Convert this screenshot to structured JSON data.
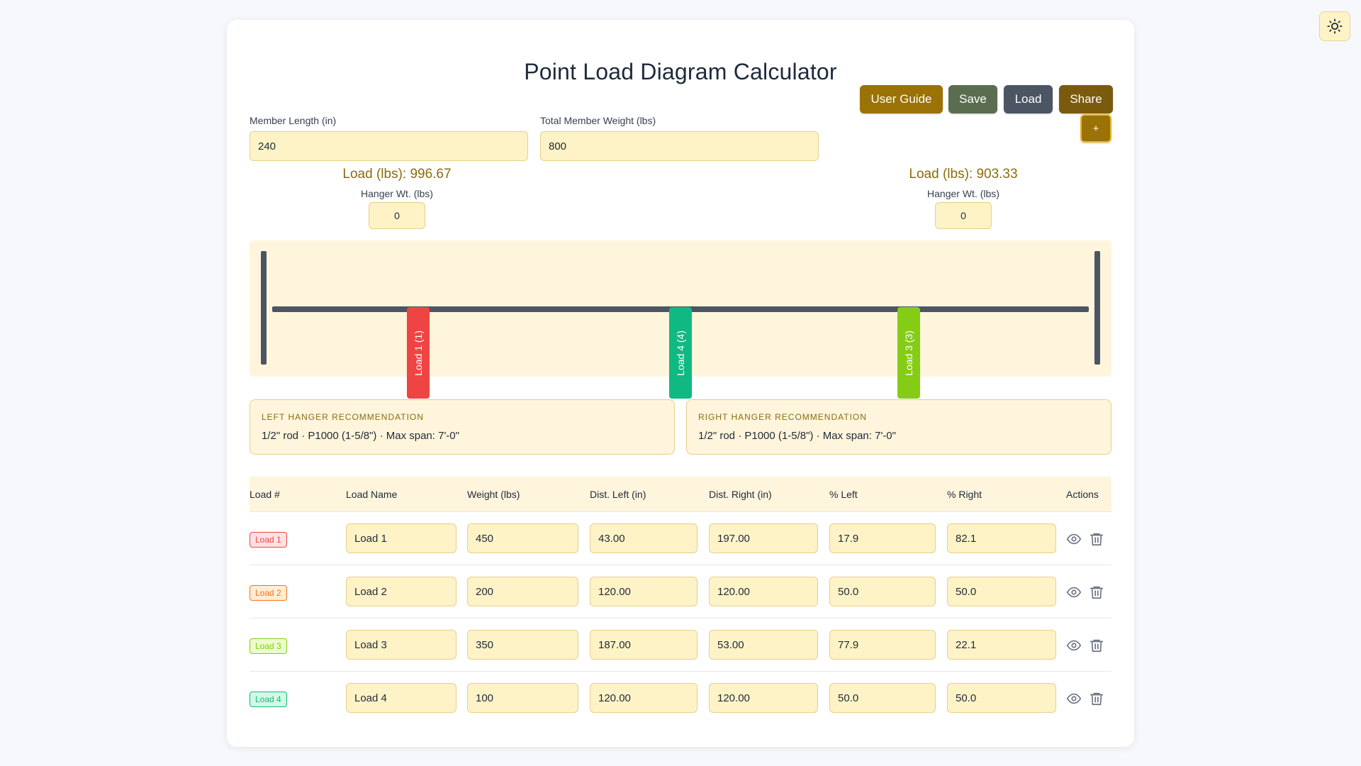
{
  "app": {
    "title": "Point Load Diagram Calculator"
  },
  "fields": {
    "member_length_label": "Member Length (in)",
    "member_length_value": "240",
    "total_weight_label": "Total Member Weight (lbs)",
    "total_weight_value": "800"
  },
  "toolbar": {
    "user_guide": "User Guide",
    "save": "Save",
    "load": "Load",
    "share": "Share",
    "add": "+"
  },
  "supports": {
    "left": {
      "load_text": "Load (lbs): 996.67",
      "hanger_label": "Hanger Wt. (lbs)",
      "hanger_value": "0"
    },
    "right": {
      "load_text": "Load (lbs): 903.33",
      "hanger_label": "Hanger Wt. (lbs)",
      "hanger_value": "0"
    }
  },
  "diagram": {
    "member_length": 240,
    "markers": [
      {
        "label": "Load 1 (1)",
        "position_in": 43,
        "color": "#ef4444"
      },
      {
        "label": "Load 4 (4)",
        "position_in": 120,
        "color": "#10b981"
      },
      {
        "label": "Load 3 (3)",
        "position_in": 187,
        "color": "#84cc16"
      }
    ]
  },
  "recommendations": {
    "left": {
      "title": "LEFT HANGER RECOMMENDATION",
      "text": "1/2\" rod · P1000 (1-5/8\") · Max span: 7'-0\""
    },
    "right": {
      "title": "RIGHT HANGER RECOMMENDATION",
      "text": "1/2\" rod · P1000 (1-5/8\") · Max span: 7'-0\""
    }
  },
  "table": {
    "headers": [
      "Load #",
      "Load Name",
      "Weight (lbs)",
      "Dist. Left (in)",
      "Dist. Right (in)",
      "% Left",
      "% Right",
      "Actions"
    ],
    "rows": [
      {
        "badge": "Load 1",
        "badge_color": "#ef4444",
        "badge_bg": "#fee2e2",
        "name": "Load 1",
        "weight": "450",
        "dist_left": "43.00",
        "dist_right": "197.00",
        "pct_left": "17.9",
        "pct_right": "82.1"
      },
      {
        "badge": "Load 2",
        "badge_color": "#f97316",
        "badge_bg": "#ffedd5",
        "name": "Load 2",
        "weight": "200",
        "dist_left": "120.00",
        "dist_right": "120.00",
        "pct_left": "50.0",
        "pct_right": "50.0"
      },
      {
        "badge": "Load 3",
        "badge_color": "#84cc16",
        "badge_bg": "#ecfccb",
        "name": "Load 3",
        "weight": "350",
        "dist_left": "187.00",
        "dist_right": "53.00",
        "pct_left": "77.9",
        "pct_right": "22.1"
      },
      {
        "badge": "Load 4",
        "badge_color": "#10b981",
        "badge_bg": "#d1fae5",
        "name": "Load 4",
        "weight": "100",
        "dist_left": "120.00",
        "dist_right": "120.00",
        "pct_left": "50.0",
        "pct_right": "50.0"
      }
    ]
  },
  "colors": {
    "user_guide": "#9a7206",
    "save": "#5a6e4f",
    "load": "#4b5563",
    "share": "#7a5a0c",
    "add": "#9a7206"
  },
  "icons": {
    "theme": "sun-icon",
    "view": "eye-icon",
    "delete": "trash-icon"
  }
}
